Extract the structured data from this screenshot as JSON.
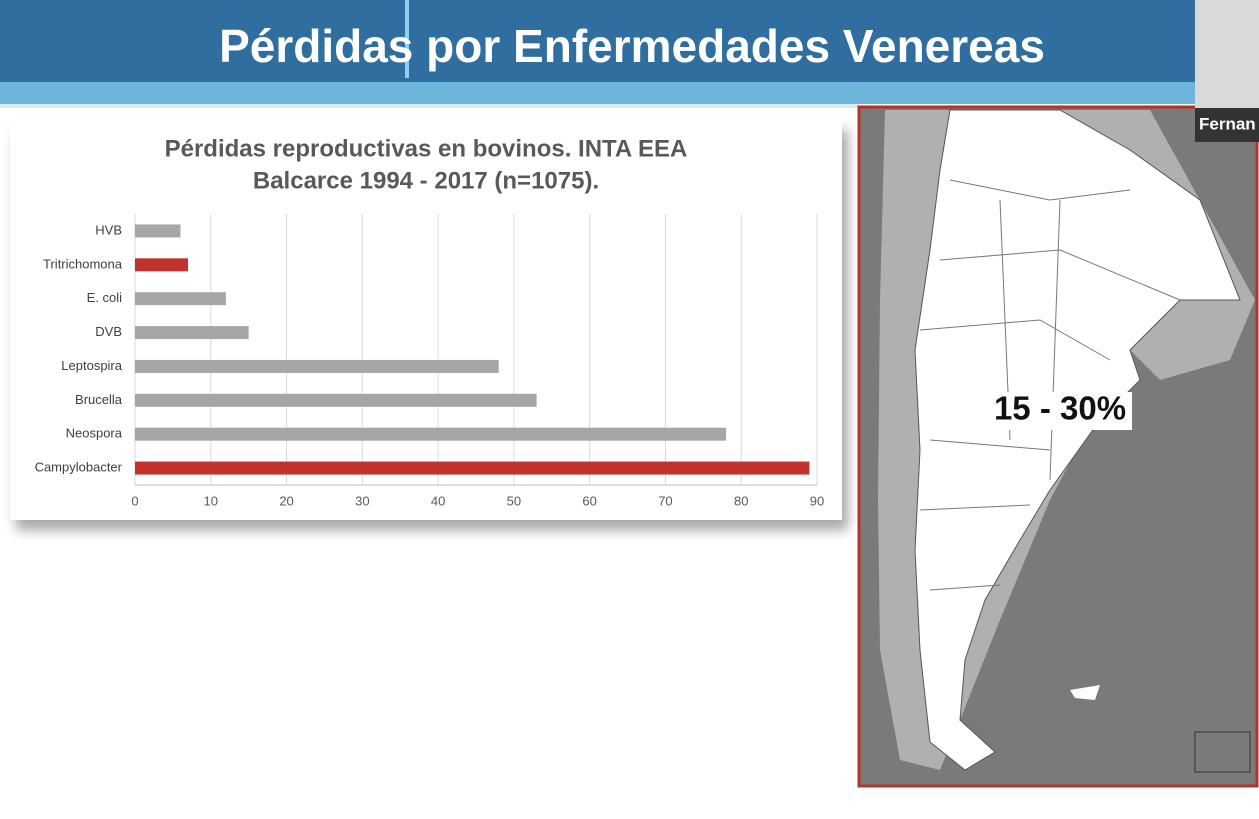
{
  "slide_title": "Pérdidas por Enfermedades Venereas",
  "participant_name": "Fernan",
  "map_label": "15 - 30%",
  "chart_data": {
    "type": "bar",
    "orientation": "horizontal",
    "title": [
      "Pérdidas reproductivas en bovinos. INTA EEA",
      "Balcarce 1994 - 2017 (n=1075)."
    ],
    "categories": [
      "HVB",
      "Tritrichomona",
      "E. coli",
      "DVB",
      "Leptospira",
      "Brucella",
      "Neospora",
      "Campylobacter"
    ],
    "values": [
      6,
      7,
      12,
      15,
      48,
      53,
      78,
      89
    ],
    "colors": [
      "#a6a6a6",
      "#c0322b",
      "#a6a6a6",
      "#a6a6a6",
      "#a6a6a6",
      "#a6a6a6",
      "#a6a6a6",
      "#c0322b"
    ],
    "xlim": [
      0,
      90
    ],
    "xticks": [
      0,
      10,
      20,
      30,
      40,
      50,
      60,
      70,
      80,
      90
    ],
    "grid": true
  }
}
